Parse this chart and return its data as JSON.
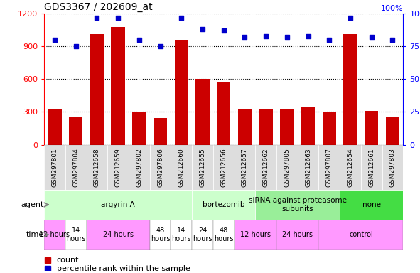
{
  "title": "GDS3367 / 202609_at",
  "samples": [
    "GSM297801",
    "GSM297804",
    "GSM212658",
    "GSM212659",
    "GSM297802",
    "GSM297806",
    "GSM212660",
    "GSM212655",
    "GSM212656",
    "GSM212657",
    "GSM212662",
    "GSM297805",
    "GSM212663",
    "GSM297807",
    "GSM212654",
    "GSM212661",
    "GSM297803"
  ],
  "counts": [
    320,
    255,
    1010,
    1080,
    300,
    245,
    960,
    600,
    575,
    330,
    330,
    330,
    345,
    300,
    1010,
    310,
    260
  ],
  "percentiles": [
    80,
    75,
    97,
    97,
    80,
    75,
    97,
    88,
    87,
    82,
    83,
    82,
    83,
    80,
    97,
    82,
    80
  ],
  "bar_color": "#cc0000",
  "dot_color": "#0000cc",
  "ylim_left": [
    0,
    1200
  ],
  "ylim_right": [
    0,
    100
  ],
  "yticks_left": [
    0,
    300,
    600,
    900,
    1200
  ],
  "yticks_right": [
    0,
    25,
    50,
    75,
    100
  ],
  "agent_groups": [
    {
      "label": "argyrin A",
      "start": 0,
      "end": 7,
      "color": "#ccffcc"
    },
    {
      "label": "bortezomib",
      "start": 7,
      "end": 10,
      "color": "#ccffcc"
    },
    {
      "label": "siRNA against proteasome\nsubunits",
      "start": 10,
      "end": 14,
      "color": "#99ee99"
    },
    {
      "label": "none",
      "start": 14,
      "end": 17,
      "color": "#44dd44"
    }
  ],
  "time_groups": [
    {
      "label": "12 hours",
      "start": 0,
      "end": 1,
      "color": "#ff99ff"
    },
    {
      "label": "14\nhours",
      "start": 1,
      "end": 2,
      "color": "#ffffff"
    },
    {
      "label": "24 hours",
      "start": 2,
      "end": 5,
      "color": "#ff99ff"
    },
    {
      "label": "48\nhours",
      "start": 5,
      "end": 6,
      "color": "#ffffff"
    },
    {
      "label": "14\nhours",
      "start": 6,
      "end": 7,
      "color": "#ffffff"
    },
    {
      "label": "24\nhours",
      "start": 7,
      "end": 8,
      "color": "#ffffff"
    },
    {
      "label": "48\nhours",
      "start": 8,
      "end": 9,
      "color": "#ffffff"
    },
    {
      "label": "12 hours",
      "start": 9,
      "end": 11,
      "color": "#ff99ff"
    },
    {
      "label": "24 hours",
      "start": 11,
      "end": 13,
      "color": "#ff99ff"
    },
    {
      "label": "control",
      "start": 13,
      "end": 17,
      "color": "#ff99ff"
    }
  ],
  "legend_count_color": "#cc0000",
  "legend_pct_color": "#0000cc",
  "sample_bg_color": "#dddddd",
  "label_row_bg": "#f0f0f0"
}
